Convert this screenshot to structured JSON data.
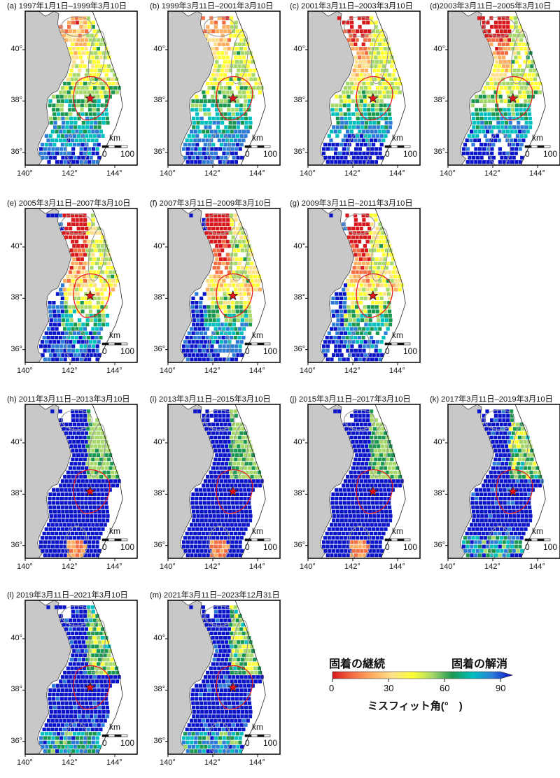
{
  "map": {
    "lon_range": [
      140,
      145
    ],
    "lat_range": [
      35.5,
      41.5
    ],
    "x_ticks": [
      "140°",
      "142°",
      "144°"
    ],
    "y_ticks": [
      "40°",
      "38°",
      "36°"
    ],
    "scale_unit": "km",
    "scale_values": [
      "0",
      "100"
    ],
    "epicenter": {
      "lon": 142.9,
      "lat": 38.1
    },
    "land_color": "#c8c8c8",
    "epicenter_color": "#e8141c",
    "contour_red": "#e8141c",
    "contour_gray": "#9a9a9a"
  },
  "panels": [
    {
      "label": "(a) 1997年1月1日–1999年3月10日",
      "mode": 0
    },
    {
      "label": "(b) 1999年3月11日–2001年3月10日",
      "mode": 0
    },
    {
      "label": "(c) 2001年3月11日–2003年3月10日",
      "mode": 1
    },
    {
      "label": "(d)2003年3月11日–2005年3月10日",
      "mode": 1
    },
    {
      "label": "(e) 2005年3月11日–2007年3月10日",
      "mode": 2
    },
    {
      "label": "(f) 2007年3月11日–2009年3月10日",
      "mode": 2
    },
    {
      "label": "(g) 2009年3月11日–2011年3月10日",
      "mode": 2
    },
    {
      "label": "(h) 2011年3月11日–2013年3月10日",
      "mode": 3
    },
    {
      "label": "(i) 2013年3月11日–2015年3月10日",
      "mode": 3
    },
    {
      "label": "(j) 2015年3月11日–2017年3月10日",
      "mode": 3
    },
    {
      "label": "(k) 2017年3月11日–2019年3月10日",
      "mode": 4
    },
    {
      "label": "(l) 2019年3月11日–2021年3月10日",
      "mode": 4
    },
    {
      "label": "(m) 2021年3月11日–2023年12月31日",
      "mode": 4
    }
  ],
  "legend": {
    "left_label": "固着の継続",
    "right_label": "固着の解消",
    "ticks": [
      "0",
      "30",
      "60",
      "90"
    ],
    "tick_values": [
      0,
      30,
      60,
      90
    ],
    "caption": "ミスフィット角(°　)",
    "colors": [
      "#d7191c",
      "#f46d43",
      "#fdae61",
      "#fee08b",
      "#ffff33",
      "#a6d96a",
      "#1a9850",
      "#00bfbf",
      "#2c7bd6",
      "#0a14c8"
    ]
  }
}
